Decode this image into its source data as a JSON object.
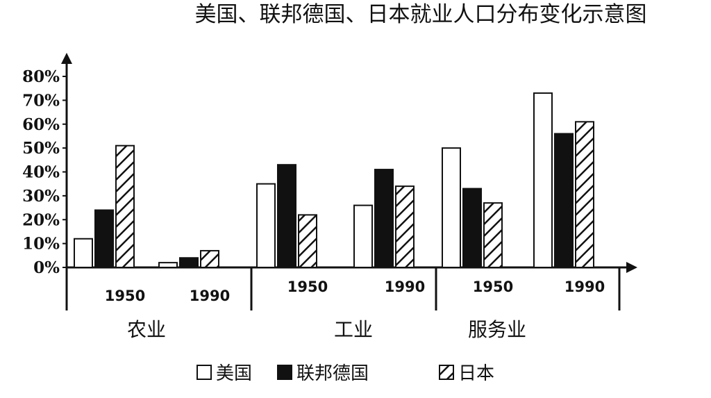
{
  "chart_data": {
    "type": "bar",
    "title": "美国、联邦德国、日本就业人口分布变化示意图",
    "xlabel": "",
    "ylabel": "",
    "ylim": [
      0,
      80
    ],
    "y_ticks": [
      "80%",
      "70%",
      "60%",
      "50%",
      "40%",
      "30%",
      "20%",
      "10%",
      "0%"
    ],
    "groups": [
      {
        "sector": "农业",
        "years": [
          "1950",
          "1990"
        ]
      },
      {
        "sector": "工业",
        "years": [
          "1950",
          "1990"
        ]
      },
      {
        "sector": "服务业",
        "years": [
          "1950",
          "1990"
        ]
      }
    ],
    "categories": [
      "农业 1950",
      "农业 1990",
      "工业 1950",
      "工业 1990",
      "服务业 1950",
      "服务业 1990"
    ],
    "series": [
      {
        "name": "美国",
        "pattern": "white",
        "values": [
          12,
          2,
          35,
          26,
          50,
          73
        ]
      },
      {
        "name": "联邦德国",
        "pattern": "black",
        "values": [
          24,
          4,
          43,
          41,
          33,
          56
        ]
      },
      {
        "name": "日本",
        "pattern": "hatched",
        "values": [
          51,
          7,
          22,
          34,
          27,
          61
        ]
      }
    ],
    "legend": {
      "items": [
        "美国",
        "联邦德国",
        "日本"
      ],
      "position": "bottom"
    },
    "grid": false
  }
}
